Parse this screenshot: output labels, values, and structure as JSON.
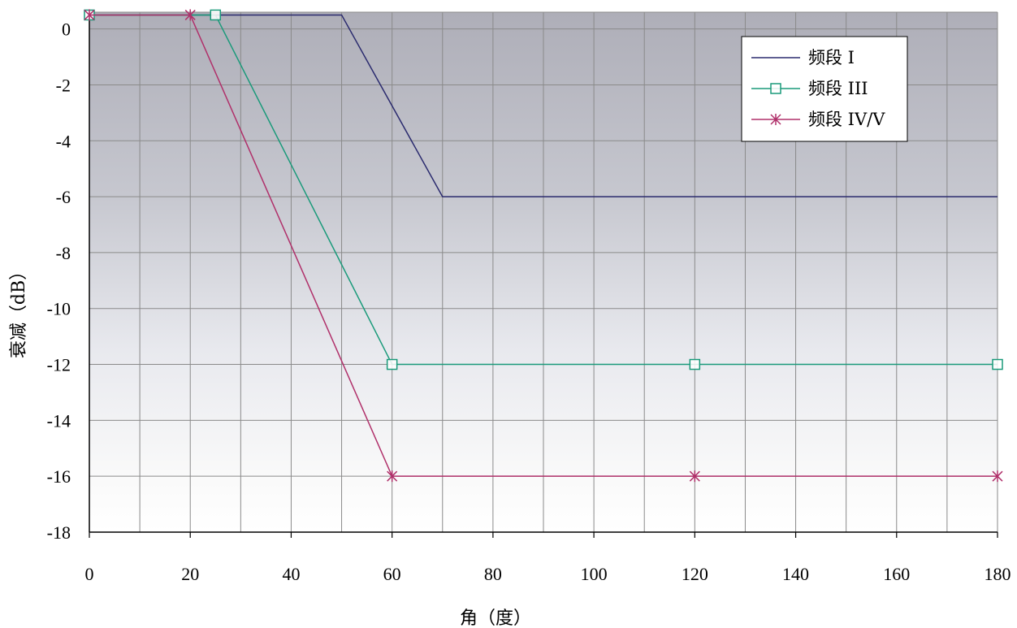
{
  "chart_data": {
    "type": "line",
    "title": "",
    "xlabel": "角（度）",
    "ylabel": "衰减（dB）",
    "xlim": [
      0,
      180
    ],
    "ylim": [
      -18,
      0.6
    ],
    "xticks": [
      0,
      20,
      40,
      60,
      80,
      100,
      120,
      140,
      160,
      180
    ],
    "yticks": [
      0,
      -2,
      -4,
      -6,
      -8,
      -10,
      -12,
      -14,
      -16,
      -18
    ],
    "x_minor_step": 10,
    "y_grid_step": 2,
    "grid": true,
    "background": "gradient-gray-top-to-white-bottom",
    "legend_position": "top-right",
    "series": [
      {
        "name": "频段 I",
        "color": "#2a2a6e",
        "marker": "none",
        "points": [
          [
            0,
            0.5
          ],
          [
            50,
            0.5
          ],
          [
            70,
            -6
          ],
          [
            180,
            -6
          ]
        ]
      },
      {
        "name": "频段 III",
        "color": "#1a9a7a",
        "marker": "square",
        "points": [
          [
            0,
            0.5
          ],
          [
            25,
            0.5
          ],
          [
            60,
            -12
          ],
          [
            120,
            -12
          ],
          [
            180,
            -12
          ]
        ],
        "marked_points": [
          [
            0,
            0.5
          ],
          [
            25,
            0.5
          ],
          [
            60,
            -12
          ],
          [
            120,
            -12
          ],
          [
            180,
            -12
          ]
        ]
      },
      {
        "name": "频段 IV/V",
        "color": "#b0306a",
        "marker": "asterisk",
        "points": [
          [
            0,
            0.5
          ],
          [
            20,
            0.5
          ],
          [
            60,
            -16
          ],
          [
            120,
            -16
          ],
          [
            180,
            -16
          ]
        ],
        "marked_points": [
          [
            0,
            0.5
          ],
          [
            20,
            0.5
          ],
          [
            60,
            -16
          ],
          [
            120,
            -16
          ],
          [
            180,
            -16
          ]
        ]
      }
    ]
  }
}
